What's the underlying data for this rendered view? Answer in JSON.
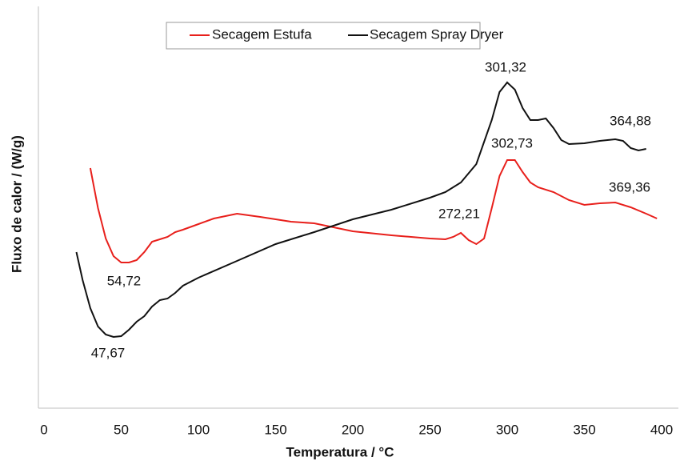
{
  "chart_data": {
    "type": "line",
    "xlabel": "Temperatura / °C",
    "ylabel": "Fluxo de calor  / (W/g)",
    "xlim": [
      0,
      400
    ],
    "xticks": [
      0,
      50,
      100,
      150,
      200,
      250,
      300,
      350,
      400
    ],
    "ylim": [
      0,
      100
    ],
    "legend": "top",
    "series": [
      {
        "name": "Secagem Estufa",
        "color": "#e8201c",
        "x": [
          30,
          35,
          40,
          45,
          50,
          55,
          60,
          65,
          70,
          75,
          80,
          85,
          90,
          100,
          110,
          125,
          140,
          160,
          175,
          200,
          225,
          250,
          260,
          265,
          270,
          275,
          280,
          285,
          290,
          295,
          300,
          305,
          310,
          315,
          320,
          330,
          340,
          350,
          360,
          370,
          380,
          390,
          397
        ],
        "values": [
          60,
          50,
          42.4,
          38,
          36.4,
          36.4,
          37,
          39,
          41.6,
          42.2,
          42.8,
          44,
          44.6,
          46,
          47.4,
          48.6,
          47.8,
          46.6,
          46.2,
          44.2,
          43.2,
          42.4,
          42.2,
          42.8,
          43.8,
          42,
          41,
          42.4,
          50,
          58,
          62,
          62,
          59,
          56.4,
          55.2,
          54,
          52,
          50.8,
          51.2,
          51.4,
          50.2,
          48.6,
          47.4
        ]
      },
      {
        "name": "Secagem Spray Dryer",
        "color": "#111111",
        "x": [
          21,
          25,
          30,
          35,
          40,
          45,
          50,
          55,
          60,
          65,
          70,
          75,
          80,
          85,
          90,
          100,
          125,
          150,
          175,
          200,
          225,
          250,
          260,
          270,
          280,
          290,
          295,
          300,
          305,
          310,
          315,
          320,
          325,
          330,
          335,
          340,
          350,
          360,
          370,
          375,
          380,
          385,
          390
        ],
        "values": [
          39,
          32,
          25,
          20.4,
          18.4,
          17.8,
          18,
          19.6,
          21.6,
          23,
          25.4,
          27,
          27.4,
          28.8,
          30.6,
          32.6,
          36.8,
          41,
          44,
          47.2,
          49.6,
          52.6,
          54,
          56.4,
          61,
          72,
          79,
          81.4,
          79.6,
          75,
          72,
          72,
          72.4,
          70,
          67,
          66,
          66.2,
          66.8,
          67.2,
          66.8,
          65,
          64.4,
          64.8
        ]
      }
    ],
    "annotations": [
      "301,32",
      "364,88",
      "302,73",
      "369,36",
      "272,21",
      "54,72",
      "47,67"
    ]
  }
}
